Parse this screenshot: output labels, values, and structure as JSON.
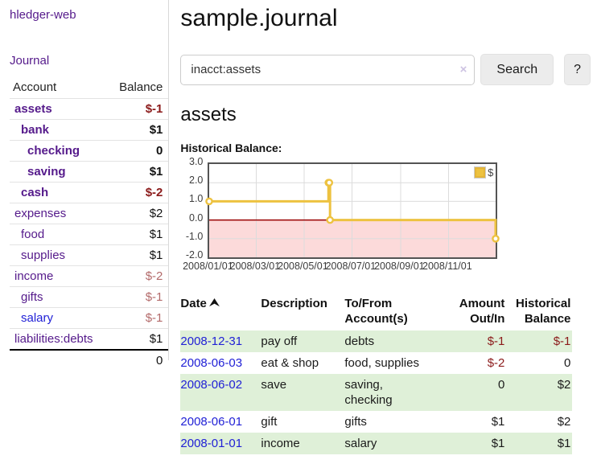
{
  "app": {
    "title": "hledger-web"
  },
  "sidebar": {
    "journal_label": "Journal",
    "table": {
      "account_header": "Account",
      "balance_header": "Balance",
      "rows": [
        {
          "name": "assets",
          "balance": "$-1",
          "depth": 0,
          "bold": true,
          "link_color": "purple",
          "balance_tone": "neg-strong"
        },
        {
          "name": "bank",
          "balance": "$1",
          "depth": 1,
          "bold": true,
          "link_color": "purple",
          "balance_tone": "normal"
        },
        {
          "name": "checking",
          "balance": "0",
          "depth": 2,
          "bold": true,
          "link_color": "purple",
          "balance_tone": "normal"
        },
        {
          "name": "saving",
          "balance": "$1",
          "depth": 2,
          "bold": true,
          "link_color": "purple",
          "balance_tone": "normal"
        },
        {
          "name": "cash",
          "balance": "$-2",
          "depth": 1,
          "bold": true,
          "link_color": "purple",
          "balance_tone": "neg-strong"
        },
        {
          "name": "expenses",
          "balance": "$2",
          "depth": 0,
          "bold": false,
          "link_color": "purple",
          "balance_tone": "normal"
        },
        {
          "name": "food",
          "balance": "$1",
          "depth": 1,
          "bold": false,
          "link_color": "purple",
          "balance_tone": "normal"
        },
        {
          "name": "supplies",
          "balance": "$1",
          "depth": 1,
          "bold": false,
          "link_color": "purple",
          "balance_tone": "normal"
        },
        {
          "name": "income",
          "balance": "$-2",
          "depth": 0,
          "bold": false,
          "link_color": "purple",
          "balance_tone": "neg-soft"
        },
        {
          "name": "gifts",
          "balance": "$-1",
          "depth": 1,
          "bold": false,
          "link_color": "purple",
          "balance_tone": "neg-soft"
        },
        {
          "name": "salary",
          "balance": "$-1",
          "depth": 1,
          "bold": false,
          "link_color": "blue",
          "balance_tone": "neg-soft"
        },
        {
          "name": "liabilities:debts",
          "balance": "$1",
          "depth": 0,
          "bold": false,
          "link_color": "purple",
          "balance_tone": "normal"
        }
      ],
      "total": "0"
    }
  },
  "main": {
    "page_title": "sample.journal",
    "search": {
      "value": "inacct:assets",
      "clear_label": "×",
      "button_label": "Search",
      "help_label": "?"
    },
    "account_title": "assets",
    "chart_label": "Historical Balance:"
  },
  "chart_data": {
    "type": "line",
    "title": "Historical Balance:",
    "step": true,
    "series": [
      {
        "name": "$",
        "color": "#edc240",
        "points": [
          {
            "date": "2008-01-01",
            "value": 1
          },
          {
            "date": "2008-06-01",
            "value": 2
          },
          {
            "date": "2008-06-02",
            "value": 2
          },
          {
            "date": "2008-06-03",
            "value": 0
          },
          {
            "date": "2008-12-31",
            "value": -1
          }
        ]
      }
    ],
    "x_range": [
      "2008-01-01",
      "2008-12-31"
    ],
    "y_range": [
      -2,
      3
    ],
    "y_tick_labels": [
      "3.0",
      "2.0",
      "1.0",
      "0.0",
      "-1.0",
      "-2.0"
    ],
    "x_tick_labels": [
      "2008/01/01",
      "2008/03/01",
      "2008/05/01",
      "2008/07/01",
      "2008/09/01",
      "2008/11/01"
    ],
    "x_tick_dates": [
      "2008-01-01",
      "2008-03-01",
      "2008-05-01",
      "2008-07-01",
      "2008-09-01",
      "2008-11-01"
    ],
    "legend": {
      "label": "$",
      "position": "top-right"
    },
    "grid": true,
    "negative_region": true,
    "colors": {
      "line": "#edc240",
      "negative_fill": "#fcdada",
      "zero_line": "#990000",
      "grid": "#dcdcdc",
      "border": "#545454"
    }
  },
  "register": {
    "headers": {
      "date": "Date",
      "description": [
        "Description"
      ],
      "tofrom": [
        "To/From",
        "Account(s)"
      ],
      "amount": [
        "Amount",
        "Out/In"
      ],
      "balance": [
        "Historical",
        "Balance"
      ]
    },
    "rows": [
      {
        "date": "2008-12-31",
        "description": "pay off",
        "accounts": [
          "debts"
        ],
        "amount": "$-1",
        "amount_neg": true,
        "balance": "$-1",
        "balance_neg": true
      },
      {
        "date": "2008-06-03",
        "description": "eat & shop",
        "accounts": [
          "food, supplies"
        ],
        "amount": "$-2",
        "amount_neg": true,
        "balance": "0",
        "balance_neg": false
      },
      {
        "date": "2008-06-02",
        "description": "save",
        "accounts": [
          "saving,",
          "checking"
        ],
        "amount": "0",
        "amount_neg": false,
        "balance": "$2",
        "balance_neg": false
      },
      {
        "date": "2008-06-01",
        "description": "gift",
        "accounts": [
          "gifts"
        ],
        "amount": "$1",
        "amount_neg": false,
        "balance": "$2",
        "balance_neg": false
      },
      {
        "date": "2008-01-01",
        "description": "income",
        "accounts": [
          "salary"
        ],
        "amount": "$1",
        "amount_neg": false,
        "balance": "$1",
        "balance_neg": false
      }
    ]
  },
  "colors": {
    "link_purple": "#551A8B",
    "link_blue": "#2121d6",
    "negative_strong": "#8b1a1a",
    "negative_soft": "#b36a6a",
    "row_green": "#dff0d8"
  }
}
